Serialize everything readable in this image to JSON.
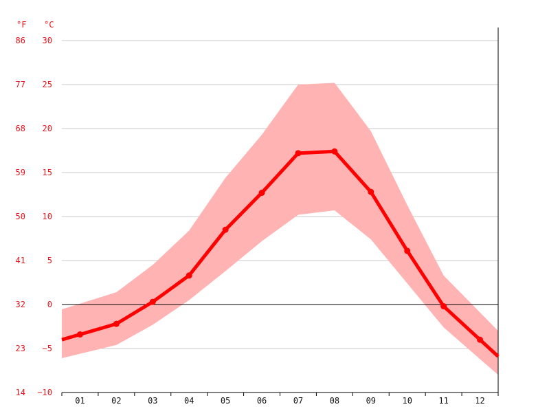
{
  "chart_data": {
    "type": "line",
    "categories": [
      "01",
      "02",
      "03",
      "04",
      "05",
      "06",
      "07",
      "08",
      "09",
      "10",
      "11",
      "12"
    ],
    "series": [
      {
        "values": [
          -3.4,
          -2.2,
          0.3,
          3.3,
          8.5,
          12.7,
          17.2,
          17.4,
          12.8,
          6.1,
          -0.2,
          -4.0
        ]
      }
    ],
    "band": {
      "upper": [
        0.1,
        1.4,
        4.5,
        8.4,
        14.4,
        19.3,
        25.0,
        25.2,
        19.7,
        11.3,
        3.3,
        -0.9
      ],
      "lower": [
        -5.6,
        -4.6,
        -2.3,
        0.5,
        3.8,
        7.2,
        10.2,
        10.7,
        7.4,
        2.4,
        -2.6,
        -6.2
      ]
    },
    "y_ticks_c": [
      -10,
      -5,
      0,
      5,
      10,
      15,
      20,
      25,
      30
    ],
    "y_ticks_f": [
      14,
      23,
      32,
      41,
      50,
      59,
      68,
      77,
      86
    ],
    "unit_f": "°F",
    "unit_c": "°C",
    "ylim": [
      -10,
      30
    ],
    "grid": true,
    "colors": {
      "line": "#ff0000",
      "band": "#ffb3b3",
      "ticks": "#e8141c"
    }
  }
}
